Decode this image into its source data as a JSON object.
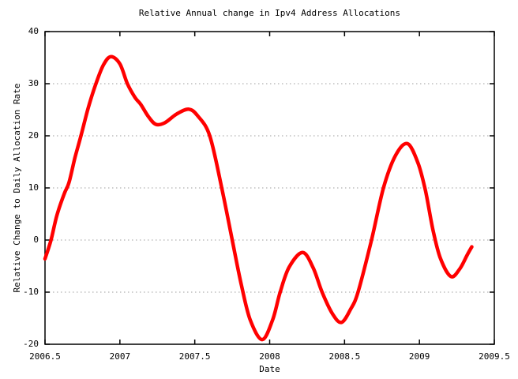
{
  "chart_data": {
    "type": "line",
    "title": "Relative Annual change in Ipv4 Address Allocations",
    "xlabel": "Date",
    "ylabel": "Relative Change to Daily Allocation Rate",
    "xlim": [
      2006.5,
      2009.5
    ],
    "ylim": [
      -20,
      40
    ],
    "xticks": {
      "values": [
        2006.5,
        2007,
        2007.5,
        2008,
        2008.5,
        2009,
        2009.5
      ],
      "labels": [
        "2006.5",
        "2007",
        "2007.5",
        "2008",
        "2008.5",
        "2009",
        "2009.5"
      ]
    },
    "yticks": {
      "values": [
        -20,
        -10,
        0,
        10,
        20,
        30,
        40
      ],
      "labels": [
        "-20",
        "-10",
        "0",
        "10",
        "20",
        "30",
        "40"
      ]
    },
    "grid": "horizontal-dotted",
    "grid_color": "#9e9e9e",
    "axis_color": "#000000",
    "legend": "none",
    "series": [
      {
        "name": "relative-annual-change",
        "color": "#ff0000",
        "line_width": 4.5,
        "points": [
          [
            2006.5,
            -3.6
          ],
          [
            2006.54,
            0.0
          ],
          [
            2006.58,
            4.8
          ],
          [
            2006.63,
            9.0
          ],
          [
            2006.66,
            11.0
          ],
          [
            2006.7,
            15.8
          ],
          [
            2006.74,
            20.0
          ],
          [
            2006.79,
            25.5
          ],
          [
            2006.84,
            30.0
          ],
          [
            2006.89,
            33.6
          ],
          [
            2006.94,
            35.2
          ],
          [
            2007.0,
            33.8
          ],
          [
            2007.05,
            30.0
          ],
          [
            2007.1,
            27.4
          ],
          [
            2007.14,
            26.0
          ],
          [
            2007.19,
            23.7
          ],
          [
            2007.24,
            22.2
          ],
          [
            2007.3,
            22.5
          ],
          [
            2007.38,
            24.2
          ],
          [
            2007.46,
            25.1
          ],
          [
            2007.52,
            23.8
          ],
          [
            2007.6,
            20.0
          ],
          [
            2007.68,
            10.0
          ],
          [
            2007.75,
            0.0
          ],
          [
            2007.81,
            -8.5
          ],
          [
            2007.87,
            -15.3
          ],
          [
            2007.95,
            -19.1
          ],
          [
            2008.02,
            -15.3
          ],
          [
            2008.07,
            -10.0
          ],
          [
            2008.13,
            -5.2
          ],
          [
            2008.22,
            -2.4
          ],
          [
            2008.29,
            -5.3
          ],
          [
            2008.35,
            -10.0
          ],
          [
            2008.42,
            -14.2
          ],
          [
            2008.48,
            -15.8
          ],
          [
            2008.54,
            -13.3
          ],
          [
            2008.59,
            -10.0
          ],
          [
            2008.68,
            0.0
          ],
          [
            2008.76,
            10.0
          ],
          [
            2008.84,
            16.2
          ],
          [
            2008.92,
            18.5
          ],
          [
            2008.99,
            14.8
          ],
          [
            2009.04,
            9.5
          ],
          [
            2009.09,
            2.0
          ],
          [
            2009.14,
            -3.5
          ],
          [
            2009.21,
            -7.0
          ],
          [
            2009.27,
            -5.5
          ],
          [
            2009.32,
            -2.8
          ],
          [
            2009.35,
            -1.3
          ]
        ]
      }
    ]
  }
}
